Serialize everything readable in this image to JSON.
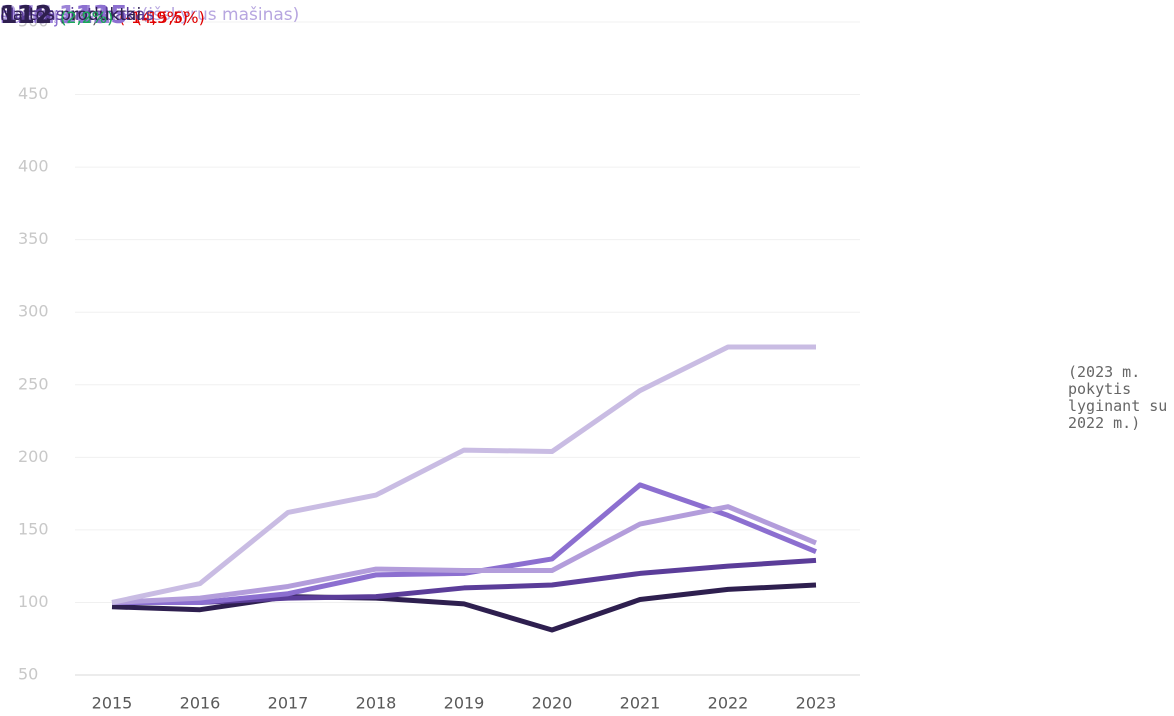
{
  "chart_data": {
    "type": "line",
    "x": [
      "2015",
      "2016",
      "2017",
      "2018",
      "2019",
      "2020",
      "2021",
      "2022",
      "2023"
    ],
    "ylim": [
      50,
      500
    ],
    "yticks": [
      50,
      100,
      150,
      200,
      250,
      300,
      350,
      400,
      450,
      500
    ],
    "grid": true,
    "note": "(2023 m. pokytis lyginant su 2022 m.)",
    "series": [
      {
        "name": "Metalų gaminiai (išskyrus mašinas)",
        "color": "#c9bce3",
        "label_color": "#b7a6e0",
        "change": "(0%)",
        "change_color": "#555555",
        "values": [
          100,
          113,
          162,
          174,
          205,
          204,
          246,
          276,
          276
        ]
      },
      {
        "name": "Baldai",
        "color": "#b39ddb",
        "label_color": "#9d84d8",
        "change": "(-14,9%)",
        "change_color": "#e00000",
        "values": [
          100,
          103,
          111,
          123,
          122,
          122,
          154,
          166,
          141
        ]
      },
      {
        "name": "Chemija",
        "color": "#8c6fd0",
        "label_color": "#8c6fd0",
        "change": "(-15,5%)",
        "change_color": "#e00000",
        "values": [
          100,
          100,
          106,
          119,
          120,
          130,
          181,
          160,
          135
        ]
      },
      {
        "name": "Maistas ir tabakas",
        "color": "#5b3d99",
        "label_color": "#5b3d99",
        "change": "(2,9%)",
        "change_color": "#1aa85a",
        "values": [
          100,
          100,
          103,
          104,
          110,
          112,
          120,
          125,
          129
        ]
      },
      {
        "name": "Naftos produktai",
        "color": "#2e1f4f",
        "label_color": "#2e1f4f",
        "change": "(2,2%)",
        "change_color": "#1aa85a",
        "values": [
          97,
          95,
          104,
          103,
          99,
          81,
          102,
          109,
          112
        ]
      }
    ]
  }
}
